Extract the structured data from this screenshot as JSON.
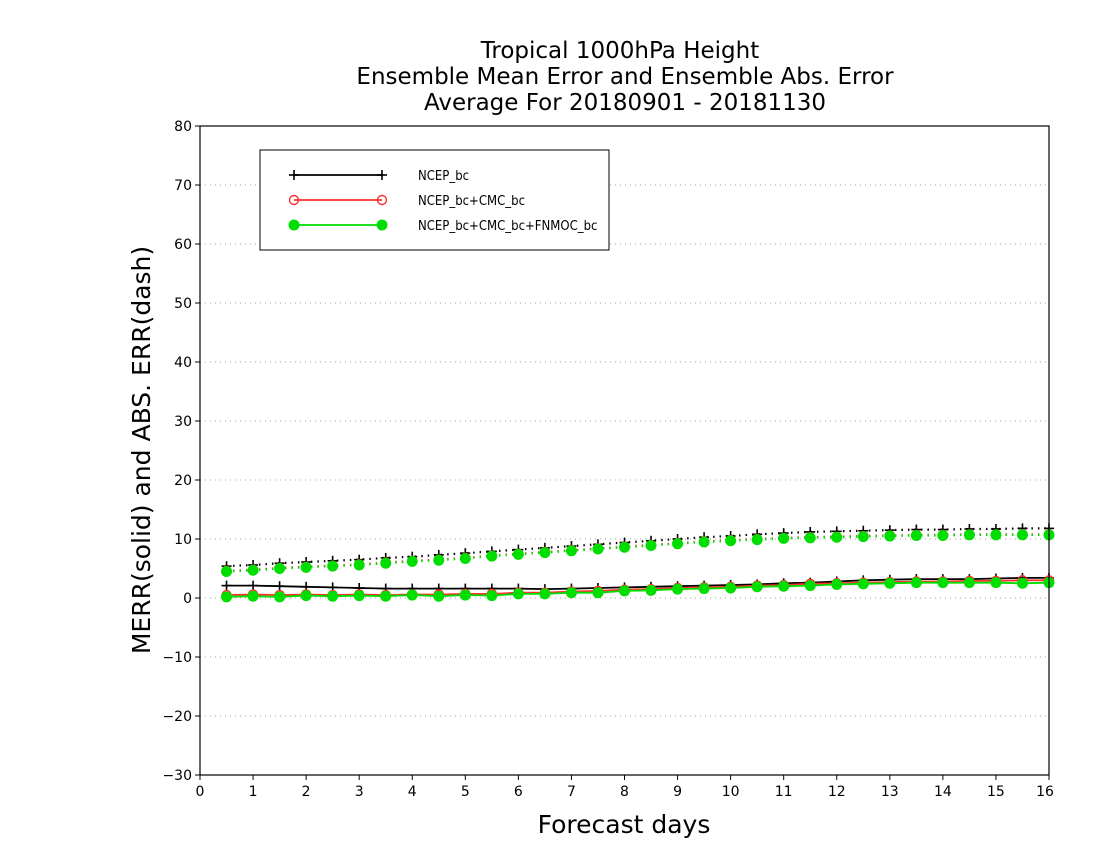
{
  "chart_data": {
    "type": "line",
    "title": [
      "Tropical 1000hPa Height",
      "Ensemble Mean Error and Ensemble Abs. Error",
      "Average For 20180901 - 20181130"
    ],
    "xlabel": "Forecast days",
    "ylabel": "MERR(solid) and ABS. ERR(dash)",
    "xlim": [
      0,
      16
    ],
    "ylim": [
      -30,
      80
    ],
    "xticks": [
      0,
      1,
      2,
      3,
      4,
      5,
      6,
      7,
      8,
      9,
      10,
      11,
      12,
      13,
      14,
      15,
      16
    ],
    "yticks": [
      -30,
      -20,
      -10,
      0,
      10,
      20,
      30,
      40,
      50,
      60,
      70,
      80
    ],
    "grid": "horizontal dotted",
    "legend_position": "top-left",
    "x": [
      0.5,
      1,
      1.5,
      2,
      2.5,
      3,
      3.5,
      4,
      4.5,
      5,
      5.5,
      6,
      6.5,
      7,
      7.5,
      8,
      8.5,
      9,
      9.5,
      10,
      10.5,
      11,
      11.5,
      12,
      12.5,
      13,
      13.5,
      14,
      14.5,
      15,
      15.5,
      16
    ],
    "series": [
      {
        "name": "NCEP_bc",
        "color": "#000000",
        "marker": "plus",
        "merr": [
          2.1,
          2.1,
          2.0,
          1.9,
          1.8,
          1.7,
          1.6,
          1.6,
          1.6,
          1.6,
          1.6,
          1.6,
          1.5,
          1.6,
          1.7,
          1.8,
          1.9,
          2.0,
          2.1,
          2.2,
          2.3,
          2.5,
          2.6,
          2.8,
          3.0,
          3.1,
          3.2,
          3.2,
          3.2,
          3.3,
          3.4,
          3.4
        ],
        "abs_err": [
          5.4,
          5.6,
          5.9,
          6.1,
          6.3,
          6.5,
          6.8,
          7.0,
          7.3,
          7.6,
          7.9,
          8.2,
          8.5,
          8.8,
          9.1,
          9.4,
          9.7,
          10.0,
          10.3,
          10.5,
          10.8,
          11.0,
          11.2,
          11.3,
          11.4,
          11.5,
          11.6,
          11.6,
          11.7,
          11.7,
          11.8,
          11.8
        ]
      },
      {
        "name": "NCEP_bc+CMC_bc",
        "color": "#ff3030",
        "marker": "open-circle",
        "merr": [
          0.5,
          0.6,
          0.5,
          0.6,
          0.5,
          0.6,
          0.5,
          0.6,
          0.6,
          0.7,
          0.7,
          0.9,
          0.9,
          1.1,
          1.2,
          1.4,
          1.5,
          1.7,
          1.8,
          1.9,
          2.1,
          2.2,
          2.4,
          2.5,
          2.6,
          2.7,
          2.8,
          2.8,
          2.9,
          2.9,
          3.0,
          3.0
        ],
        "abs_err": [
          4.6,
          4.8,
          5.1,
          5.3,
          5.5,
          5.7,
          6.0,
          6.3,
          6.5,
          6.8,
          7.2,
          7.5,
          7.8,
          8.1,
          8.4,
          8.7,
          9.0,
          9.3,
          9.6,
          9.8,
          10.0,
          10.2,
          10.3,
          10.4,
          10.5,
          10.6,
          10.7,
          10.7,
          10.8,
          10.8,
          10.8,
          10.8
        ]
      },
      {
        "name": "NCEP_bc+CMC_bc+FNMOC_bc",
        "color": "#00dd00",
        "marker": "filled-circle",
        "merr": [
          0.2,
          0.3,
          0.2,
          0.4,
          0.3,
          0.4,
          0.3,
          0.5,
          0.3,
          0.5,
          0.4,
          0.7,
          0.7,
          0.9,
          0.9,
          1.2,
          1.3,
          1.5,
          1.6,
          1.7,
          1.9,
          2.0,
          2.1,
          2.3,
          2.4,
          2.5,
          2.6,
          2.6,
          2.6,
          2.6,
          2.5,
          2.6
        ],
        "abs_err": [
          4.5,
          4.7,
          5.0,
          5.2,
          5.4,
          5.6,
          5.9,
          6.2,
          6.4,
          6.7,
          7.1,
          7.4,
          7.7,
          8.0,
          8.3,
          8.6,
          8.9,
          9.2,
          9.5,
          9.7,
          9.9,
          10.1,
          10.2,
          10.3,
          10.4,
          10.5,
          10.6,
          10.6,
          10.7,
          10.7,
          10.7,
          10.7
        ]
      }
    ]
  }
}
